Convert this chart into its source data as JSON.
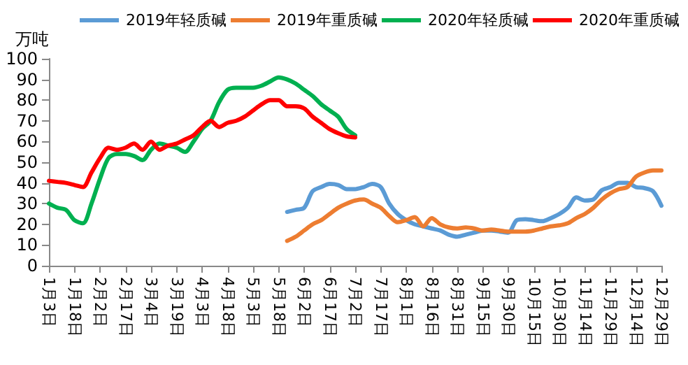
{
  "chart_data": {
    "type": "line",
    "ylabel": "万吨",
    "categories": [
      "1月3日",
      null,
      null,
      "1月18日",
      null,
      null,
      "2月2日",
      null,
      null,
      "2月17日",
      null,
      null,
      "3月4日",
      null,
      null,
      "3月19日",
      null,
      null,
      "4月3日",
      null,
      null,
      "4月18日",
      null,
      null,
      "5月3日",
      null,
      null,
      "5月18日",
      null,
      null,
      "6月2日",
      null,
      null,
      "6月17日",
      null,
      null,
      "7月2日",
      null,
      null,
      "7月17日",
      null,
      null,
      "8月1日",
      null,
      null,
      "8月16日",
      null,
      null,
      "8月31日",
      null,
      null,
      "9月15日",
      null,
      null,
      "9月30日",
      null,
      null,
      "10月15日",
      null,
      null,
      "10月30日",
      null,
      null,
      "11月14日",
      null,
      null,
      "11月29日",
      null,
      null,
      "12月14日",
      null,
      null,
      "12月29日"
    ],
    "series": [
      {
        "name": "2019年轻质碱",
        "color": "#5b9bd5",
        "values": [
          null,
          null,
          null,
          null,
          null,
          null,
          null,
          null,
          null,
          null,
          null,
          null,
          null,
          null,
          null,
          null,
          null,
          null,
          null,
          null,
          null,
          null,
          null,
          null,
          null,
          null,
          null,
          null,
          26,
          27,
          28,
          36,
          38,
          39.5,
          39,
          37,
          37,
          38,
          39.5,
          38,
          30,
          25,
          22,
          20,
          19,
          18,
          17,
          15,
          14,
          15,
          16,
          17,
          17,
          16.5,
          16,
          22,
          22.5,
          22,
          21.5,
          23,
          25,
          28,
          33,
          31.5,
          32,
          36.5,
          38,
          40,
          40,
          38,
          37.5,
          36,
          29
        ]
      },
      {
        "name": "2019年重质碱",
        "color": "#ed7d31",
        "values": [
          null,
          null,
          null,
          null,
          null,
          null,
          null,
          null,
          null,
          null,
          null,
          null,
          null,
          null,
          null,
          null,
          null,
          null,
          null,
          null,
          null,
          null,
          null,
          null,
          null,
          null,
          null,
          null,
          12,
          14,
          17,
          20,
          22,
          25,
          28,
          30,
          31.5,
          32,
          30,
          28,
          24,
          21,
          22,
          23.5,
          19,
          23,
          20,
          18.5,
          18,
          18.5,
          18,
          17,
          17.5,
          17,
          16.5,
          16.5,
          16.5,
          17,
          18,
          19,
          19.5,
          20.5,
          23,
          25,
          28,
          32,
          35,
          37,
          38,
          43,
          45,
          46,
          46
        ]
      },
      {
        "name": "2020年轻质碱",
        "color": "#00b050",
        "values": [
          30,
          28,
          27,
          22,
          20.5,
          30,
          42,
          52,
          54,
          54,
          53,
          51,
          56,
          59,
          58,
          57,
          55,
          60,
          66,
          70,
          79,
          85,
          86,
          86,
          86,
          87,
          89,
          91,
          90,
          88,
          85,
          82,
          78,
          75,
          72,
          66,
          63,
          null,
          null,
          null,
          null,
          null,
          null,
          null,
          null,
          null,
          null,
          null,
          null,
          null,
          null,
          null,
          null,
          null,
          null,
          null,
          null,
          null,
          null,
          null,
          null,
          null,
          null,
          null,
          null,
          null,
          null,
          null,
          null,
          null,
          null,
          null,
          null
        ]
      },
      {
        "name": "2020年重质碱",
        "color": "#ff0000",
        "values": [
          41,
          40.5,
          40,
          39,
          38,
          45,
          52,
          57,
          56,
          57,
          59,
          56,
          60,
          56,
          58,
          59,
          61,
          63,
          67,
          70,
          67,
          69,
          70,
          72,
          75,
          78,
          80,
          80,
          77,
          77,
          76,
          72,
          69,
          66,
          64,
          62.5,
          62,
          null,
          null,
          null,
          null,
          null,
          null,
          null,
          null,
          null,
          null,
          null,
          null,
          null,
          null,
          null,
          null,
          null,
          null,
          null,
          null,
          null,
          null,
          null,
          null,
          null,
          null,
          null,
          null,
          null,
          null,
          null,
          null,
          null,
          null,
          null,
          null
        ]
      }
    ],
    "ylim": [
      0,
      100
    ],
    "yticks": [
      0,
      10,
      20,
      30,
      40,
      50,
      60,
      70,
      80,
      90,
      100
    ],
    "grid": false,
    "legend": "top",
    "marker": "none",
    "line_style": "solid"
  }
}
